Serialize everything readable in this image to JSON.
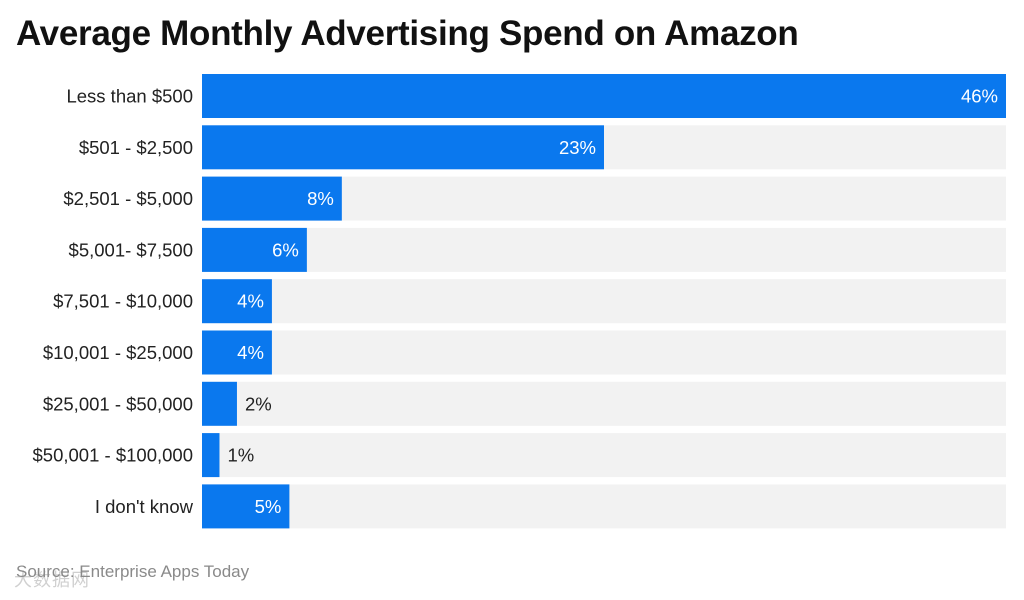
{
  "chart_data": {
    "type": "bar",
    "orientation": "horizontal",
    "title": "Average Monthly Advertising Spend on Amazon",
    "categories": [
      "Less than $500",
      "$501 - $2,500",
      "$2,501 - $5,000",
      "$5,001- $7,500",
      "$7,501 - $10,000",
      "$10,001 - $25,000",
      "$25,001 - $50,000",
      "$50,001 - $100,000",
      "I don't know"
    ],
    "values": [
      46,
      23,
      8,
      6,
      4,
      4,
      2,
      1,
      5
    ],
    "value_labels": [
      "46%",
      "23%",
      "8%",
      "6%",
      "4%",
      "4%",
      "2%",
      "1%",
      "5%"
    ],
    "xlim": [
      0,
      46
    ],
    "xlabel": "",
    "ylabel": "",
    "grid": false,
    "legend": "none"
  },
  "source": "Source: Enterprise Apps Today",
  "watermark": "大数据网",
  "colors": {
    "bar": "#0a78ee",
    "track": "#f2f2f2",
    "label_inside": "#ffffff",
    "label_outside": "#222222"
  }
}
